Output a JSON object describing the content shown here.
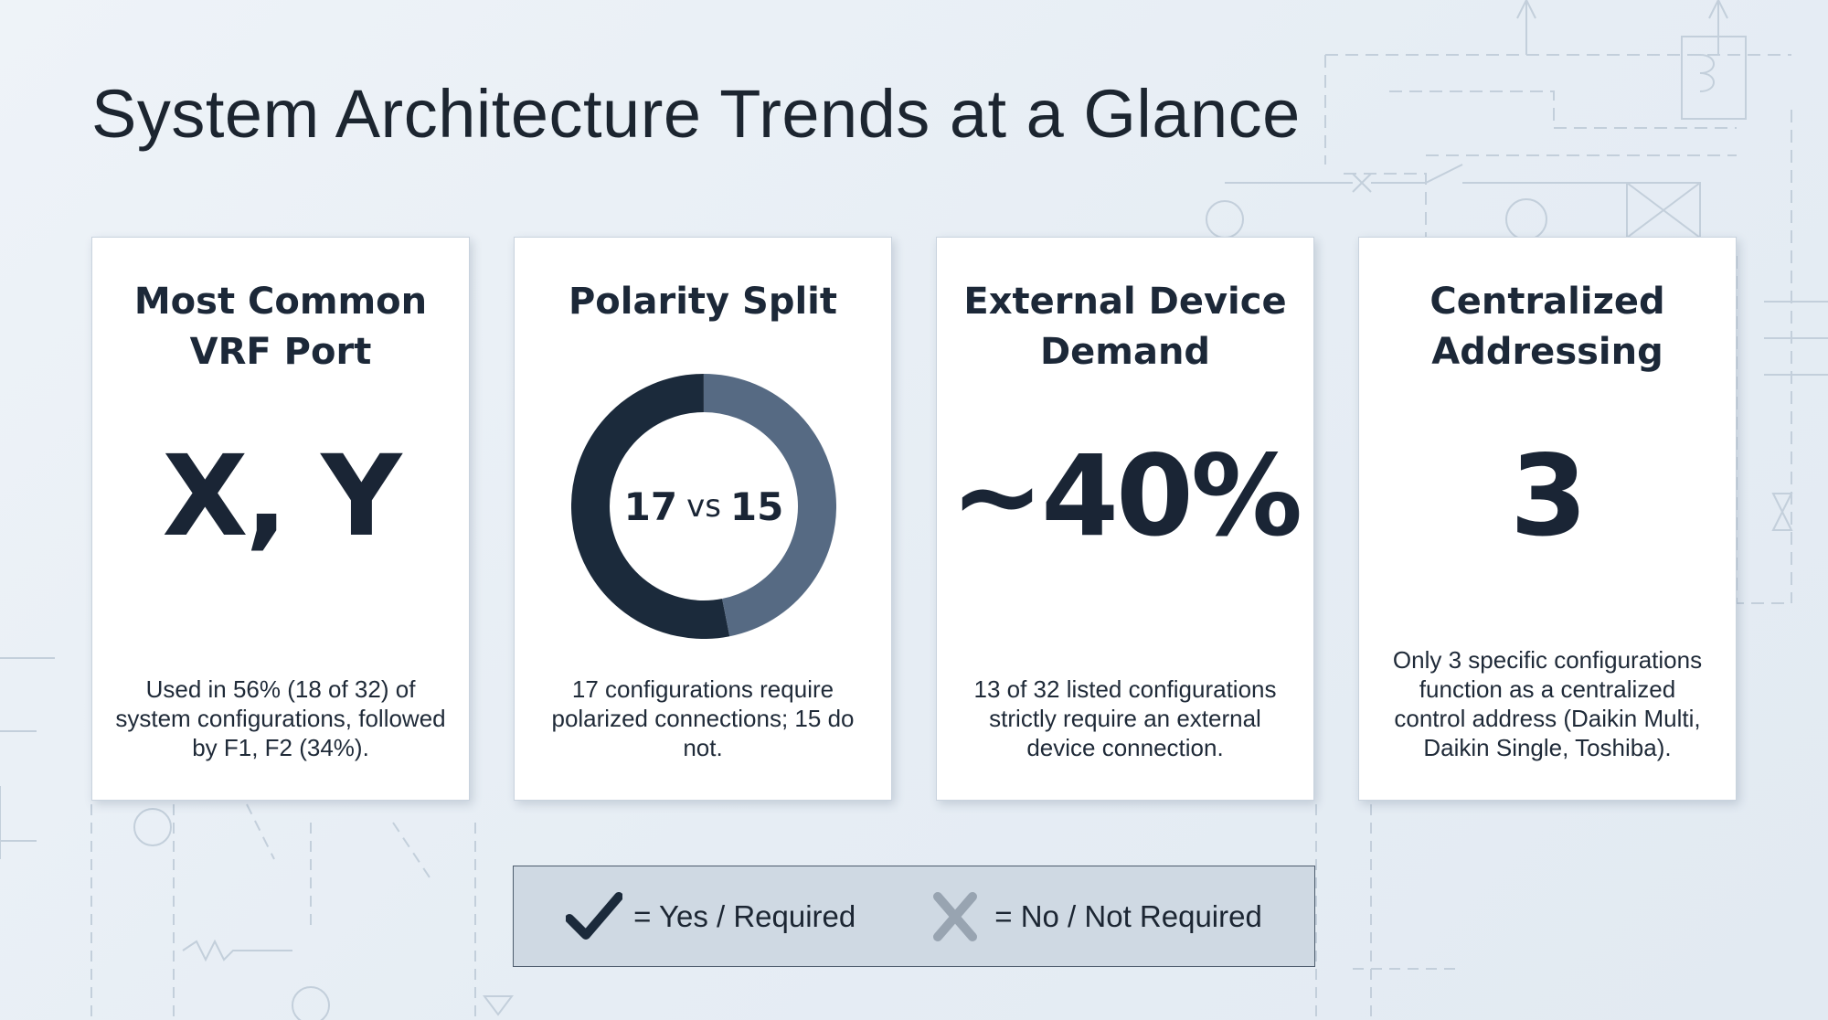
{
  "page": {
    "title": "System Architecture Trends at a Glance"
  },
  "cards": [
    {
      "title_line1": "Most Common",
      "title_line2": "VRF Port",
      "value": "X, Y",
      "description": "Used in 56% (18 of 32) of system configurations, followed by F1, F2 (34%)."
    },
    {
      "title_line1": "Polarity Split",
      "donut": {
        "left": "17",
        "vs": "vs",
        "right": "15",
        "polarized": 17,
        "non_polarized": 15
      },
      "description": "17 configurations require polarized connections; 15 do not."
    },
    {
      "title_line1": "External Device",
      "title_line2": "Demand",
      "value": "~40%",
      "description": "13 of 32 listed configurations strictly require an external device connection."
    },
    {
      "title_line1": "Centralized",
      "title_line2": "Addressing",
      "value": "3",
      "description": "Only 3 specific configurations function as a centralized control address (Daikin Multi, Daikin Single, Toshiba)."
    }
  ],
  "legend": {
    "yes": {
      "icon": "checkmark-icon",
      "label": "= Yes / Required"
    },
    "no": {
      "icon": "x-mark-icon",
      "label": "= No / Not Required"
    }
  },
  "colors": {
    "donut_dark": "#1b2a3b",
    "donut_light": "#566a83",
    "legend_bg": "#cfd9e3",
    "background": "#e9eff5"
  }
}
